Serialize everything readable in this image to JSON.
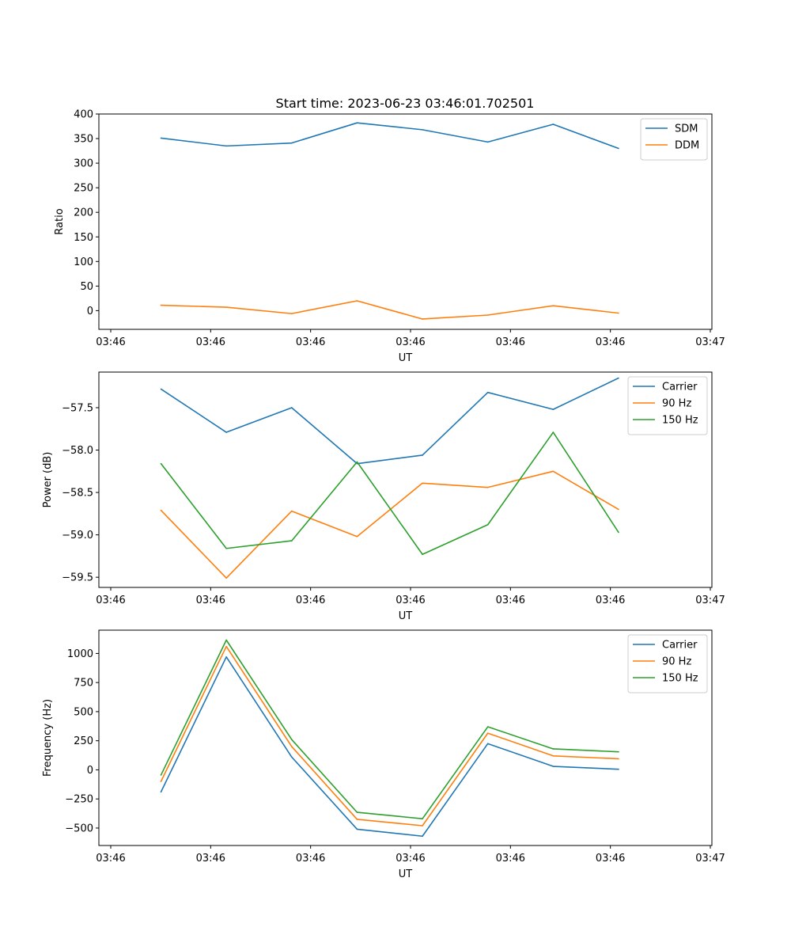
{
  "figure": {
    "title": "Start time: 2023-06-23 03:46:01.702501"
  },
  "chart_data": [
    {
      "type": "line",
      "xlabel": "UT",
      "ylabel": "Ratio",
      "x_ticks": [
        "03:46",
        "03:46",
        "03:46",
        "03:46",
        "03:46",
        "03:46",
        "03:46"
      ],
      "x_ticks_last": "03:47",
      "ylim": [
        -38,
        400
      ],
      "y_ticks": [
        0,
        50,
        100,
        150,
        200,
        250,
        300,
        350,
        400
      ],
      "grid": false,
      "legend": "top-right",
      "series": [
        {
          "name": "SDM",
          "color": "#1f77b4",
          "values": [
            351,
            335,
            341,
            382,
            368,
            343,
            379,
            330
          ]
        },
        {
          "name": "DDM",
          "color": "#ff7f0e",
          "values": [
            11,
            7,
            -6,
            20,
            -17,
            -9,
            10,
            -5
          ]
        }
      ]
    },
    {
      "type": "line",
      "xlabel": "UT",
      "ylabel": "Power (dB)",
      "x_ticks": [
        "03:46",
        "03:46",
        "03:46",
        "03:46",
        "03:46",
        "03:46",
        "03:46"
      ],
      "x_ticks_last": "03:47",
      "ylim": [
        -59.62,
        -57.08
      ],
      "y_ticks": [
        -59.5,
        -59.0,
        -58.5,
        -58.0,
        -57.5
      ],
      "y_tick_labels": [
        "−59.5",
        "−59.0",
        "−58.5",
        "−58.0",
        "−57.5"
      ],
      "grid": false,
      "legend": "top-right",
      "series": [
        {
          "name": "Carrier",
          "color": "#1f77b4",
          "values": [
            -57.28,
            -57.79,
            -57.5,
            -58.16,
            -58.06,
            -57.32,
            -57.52,
            -57.15
          ]
        },
        {
          "name": "90 Hz",
          "color": "#ff7f0e",
          "values": [
            -58.71,
            -59.51,
            -58.72,
            -59.02,
            -58.39,
            -58.44,
            -58.25,
            -58.7
          ]
        },
        {
          "name": "150 Hz",
          "color": "#2ca02c",
          "values": [
            -58.16,
            -59.16,
            -59.07,
            -58.14,
            -59.23,
            -58.88,
            -57.79,
            -58.97
          ]
        }
      ]
    },
    {
      "type": "line",
      "xlabel": "UT",
      "ylabel": "Frequency (Hz)",
      "x_ticks": [
        "03:46",
        "03:46",
        "03:46",
        "03:46",
        "03:46",
        "03:46",
        "03:46"
      ],
      "x_ticks_last": "03:47",
      "ylim": [
        -650,
        1200
      ],
      "y_ticks": [
        -500,
        -250,
        0,
        250,
        500,
        750,
        1000
      ],
      "y_tick_labels": [
        "−500",
        "−250",
        "0",
        "250",
        "500",
        "750",
        "1000"
      ],
      "grid": false,
      "legend": "top-right",
      "series": [
        {
          "name": "Carrier",
          "color": "#1f77b4",
          "values": [
            -190,
            970,
            110,
            -510,
            -570,
            225,
            30,
            5
          ]
        },
        {
          "name": "90 Hz",
          "color": "#ff7f0e",
          "values": [
            -100,
            1060,
            200,
            -425,
            -480,
            315,
            120,
            95
          ]
        },
        {
          "name": "150 Hz",
          "color": "#2ca02c",
          "values": [
            -45,
            1115,
            260,
            -365,
            -420,
            370,
            180,
            155
          ]
        }
      ]
    }
  ]
}
